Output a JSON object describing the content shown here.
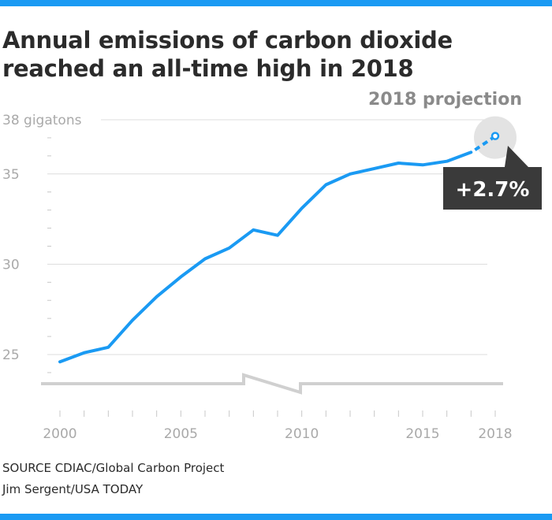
{
  "header": {
    "title": "Annual emissions of carbon dioxide reached an all-time high in 2018"
  },
  "footer": {
    "source": "SOURCE CDIAC/Global Carbon Project",
    "credit": "Jim Sergent/USA TODAY"
  },
  "colors": {
    "accent": "#1a9af3",
    "callout_bg": "#3a3a3a",
    "highlight_circle": "#e3e3e3",
    "grid": "#dcdcdc",
    "tick_text": "#a9a9a9",
    "axis_break": "#d0d0d0"
  },
  "chart_data": {
    "type": "line",
    "title": "Annual emissions of carbon dioxide reached an all-time high in 2018",
    "ylabel": "",
    "xlabel": "",
    "ylim": [
      23.5,
      38
    ],
    "xlim": [
      2000,
      2018
    ],
    "grid": true,
    "axis_break": true,
    "y_ticks": [
      {
        "value": 38,
        "label": "38 gigatons"
      },
      {
        "value": 35,
        "label": "35"
      },
      {
        "value": 30,
        "label": "30"
      },
      {
        "value": 25,
        "label": "25"
      }
    ],
    "x_ticks": [
      2000,
      2005,
      2010,
      2015,
      2018
    ],
    "x_tick_labels": [
      "2000",
      "2005",
      "2010",
      "2015",
      "2018"
    ],
    "x": [
      2000,
      2001,
      2002,
      2003,
      2004,
      2005,
      2006,
      2007,
      2008,
      2009,
      2010,
      2011,
      2012,
      2013,
      2014,
      2015,
      2016,
      2017
    ],
    "series": [
      {
        "values": [
          24.6,
          25.1,
          25.4,
          26.9,
          28.2,
          29.3,
          30.3,
          30.9,
          31.9,
          31.6,
          33.1,
          34.4,
          35.0,
          35.3,
          35.6,
          35.5,
          35.7,
          36.2
        ]
      }
    ],
    "projection": {
      "label": "2018 projection",
      "from": {
        "x": 2017,
        "y": 36.2
      },
      "to": {
        "x": 2018,
        "y": 37.1
      },
      "change_label": "+2.7%"
    }
  }
}
